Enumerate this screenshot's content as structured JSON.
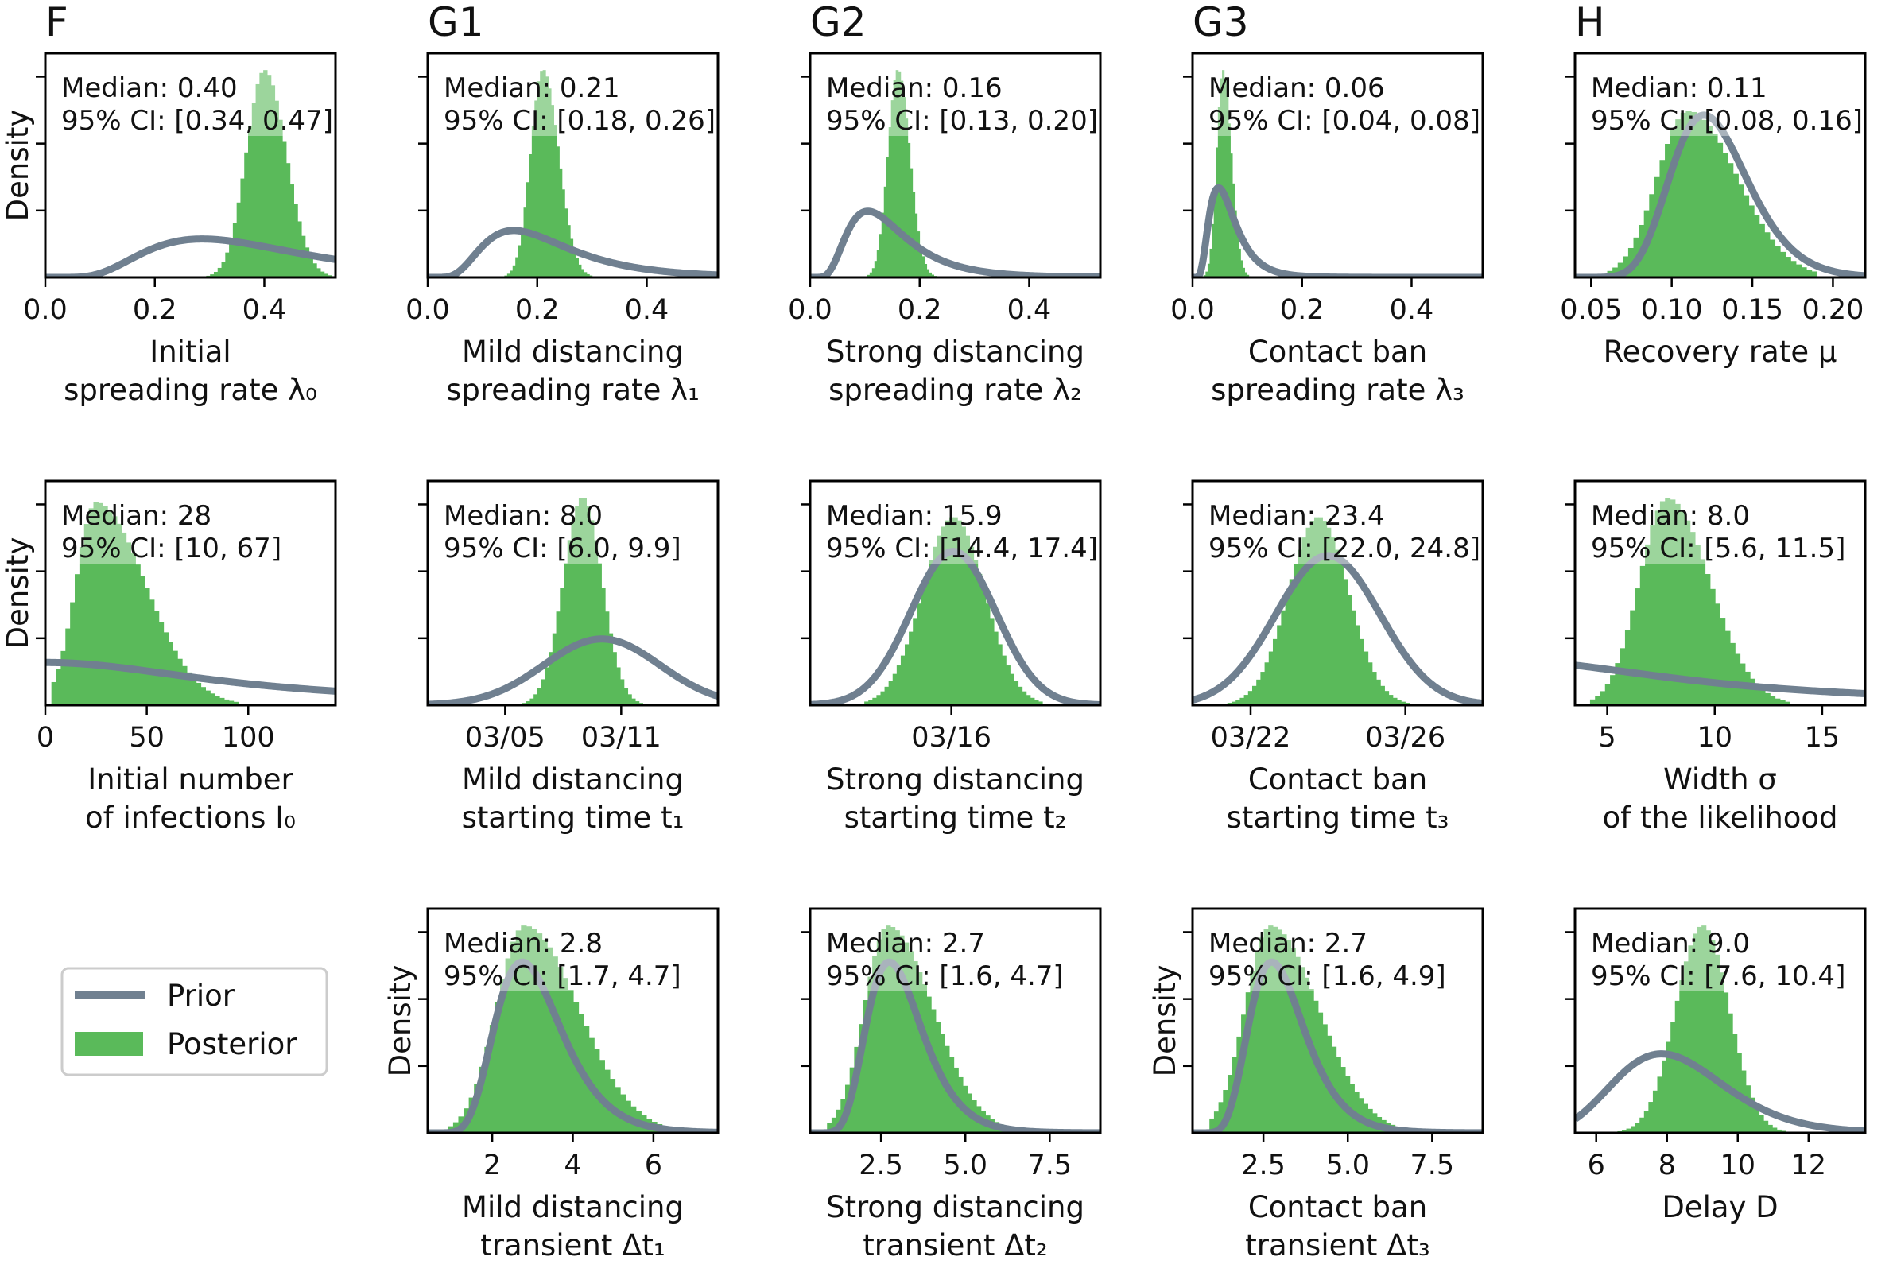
{
  "colors": {
    "prior": "#708090",
    "posterior": "#5aba5a",
    "frame": "#000000"
  },
  "y_axis_label": "Density",
  "legend": {
    "prior": "Prior",
    "posterior": "Posterior"
  },
  "chart_data": [
    {
      "id": "lambda0",
      "panel": "F",
      "type": "histogram",
      "show_ylabel": true,
      "xlabel": [
        "Initial",
        "spreading rate λ₀"
      ],
      "xlim": [
        0,
        0.53
      ],
      "xticks": [
        0,
        0.2,
        0.4
      ],
      "xtick_labels": [
        "0.0",
        "0.2",
        "0.4"
      ],
      "ymax": 1.05,
      "ytick_count": 3,
      "stats": {
        "median": "Median: 0.40",
        "ci": "95% CI: [0.34, 0.47]"
      },
      "prior": {
        "kind": "lognormal",
        "mu": -1.0,
        "sigma": 0.5,
        "peak": 0.18
      },
      "posterior": {
        "center": 0.4,
        "spread": 0.033,
        "skew": 0.2,
        "peak": 0.97,
        "bins": 36,
        "range": [
          0.28,
          0.53
        ]
      }
    },
    {
      "id": "lambda1",
      "panel": "G1",
      "type": "histogram",
      "show_ylabel": false,
      "xlabel": [
        "Mild distancing",
        "spreading rate λ₁"
      ],
      "xlim": [
        0,
        0.53
      ],
      "xticks": [
        0,
        0.2,
        0.4
      ],
      "xtick_labels": [
        "0.0",
        "0.2",
        "0.4"
      ],
      "ymax": 1.05,
      "ytick_count": 3,
      "stats": {
        "median": "Median: 0.21",
        "ci": "95% CI: [0.18, 0.26]"
      },
      "prior": {
        "kind": "lognormal",
        "mu": -1.6,
        "sigma": 0.5,
        "peak": 0.22
      },
      "posterior": {
        "center": 0.21,
        "spread": 0.022,
        "skew": 0.3,
        "peak": 0.97,
        "bins": 32,
        "range": [
          0.14,
          0.3
        ]
      }
    },
    {
      "id": "lambda2",
      "panel": "G2",
      "type": "histogram",
      "show_ylabel": false,
      "xlabel": [
        "Strong distancing",
        "spreading rate λ₂"
      ],
      "xlim": [
        0,
        0.53
      ],
      "xticks": [
        0,
        0.2,
        0.4
      ],
      "xtick_labels": [
        "0.0",
        "0.2",
        "0.4"
      ],
      "ymax": 1.05,
      "ytick_count": 3,
      "stats": {
        "median": "Median: 0.16",
        "ci": "95% CI: [0.13, 0.20]"
      },
      "prior": {
        "kind": "lognormal",
        "mu": -2.0,
        "sigma": 0.5,
        "peak": 0.31
      },
      "posterior": {
        "center": 0.16,
        "spread": 0.018,
        "skew": 0.2,
        "peak": 0.97,
        "bins": 30,
        "range": [
          0.1,
          0.23
        ]
      }
    },
    {
      "id": "lambda3",
      "panel": "G3",
      "type": "histogram",
      "show_ylabel": false,
      "xlabel": [
        "Contact ban",
        "spreading rate λ₃"
      ],
      "xlim": [
        0,
        0.53
      ],
      "xticks": [
        0,
        0.2,
        0.4
      ],
      "xtick_labels": [
        "0.0",
        "0.2",
        "0.4"
      ],
      "ymax": 1.05,
      "ytick_count": 3,
      "stats": {
        "median": "Median: 0.06",
        "ci": "95% CI: [0.04, 0.08]"
      },
      "prior": {
        "kind": "lognormal",
        "mu": -2.8,
        "sigma": 0.5,
        "peak": 0.42
      },
      "posterior": {
        "center": 0.055,
        "spread": 0.011,
        "skew": 0.4,
        "peak": 0.97,
        "bins": 24,
        "range": [
          0.02,
          0.11
        ]
      }
    },
    {
      "id": "mu",
      "panel": "H",
      "type": "histogram",
      "show_ylabel": false,
      "xlabel": [
        "Recovery rate μ"
      ],
      "xlim": [
        0.04,
        0.22
      ],
      "xticks": [
        0.05,
        0.1,
        0.15,
        0.2
      ],
      "xtick_labels": [
        "0.05",
        "0.10",
        "0.15",
        "0.20"
      ],
      "ymax": 1.05,
      "ytick_count": 3,
      "stats": {
        "median": "Median: 0.11",
        "ci": "95% CI: [0.08, 0.16]"
      },
      "prior": {
        "kind": "lognormal",
        "mu": -2.08,
        "sigma": 0.2,
        "peak": 0.76
      },
      "posterior": {
        "center": 0.11,
        "spread": 0.019,
        "skew": 0.6,
        "peak": 0.78,
        "bins": 40,
        "range": [
          0.06,
          0.19
        ]
      }
    },
    {
      "id": "I0",
      "panel": "",
      "type": "histogram",
      "show_ylabel": true,
      "xlabel": [
        "Initial number",
        "of infections I₀"
      ],
      "xlim": [
        0,
        143
      ],
      "xticks": [
        0,
        50,
        100
      ],
      "xtick_labels": [
        "0",
        "50",
        "100"
      ],
      "ymax": 1.05,
      "ytick_count": 3,
      "stats": {
        "median": "Median: 28",
        "ci": "95% CI: [10, 67]"
      },
      "prior": {
        "kind": "halfcauchy",
        "scale": 100,
        "peak": 0.2
      },
      "posterior": {
        "center": 25,
        "spread": 10,
        "skew": 1.4,
        "peak": 0.95,
        "bins": 40,
        "range": [
          3,
          95
        ]
      }
    },
    {
      "id": "t1",
      "panel": "",
      "type": "histogram",
      "show_ylabel": false,
      "xlabel": [
        "Mild distancing",
        "starting time t₁"
      ],
      "xlim": [
        0,
        15
      ],
      "xticks": [
        4,
        10
      ],
      "xtick_labels": [
        "03/05",
        "03/11"
      ],
      "ymax": 1.05,
      "ytick_count": 3,
      "stats": {
        "median": "Median: 8.0",
        "ci": "95% CI: [6.0, 9.9]"
      },
      "prior": {
        "kind": "normal",
        "mean": 9,
        "sd": 3,
        "peak": 0.31
      },
      "posterior": {
        "center": 8.0,
        "spread": 1.0,
        "skew": 0.0,
        "peak": 0.97,
        "bins": 36,
        "range": [
          4.5,
          11.5
        ]
      }
    },
    {
      "id": "t2",
      "panel": "",
      "type": "histogram",
      "show_ylabel": false,
      "xlabel": [
        "Strong distancing",
        "starting time t₂"
      ],
      "xlim": [
        0,
        15
      ],
      "xticks": [
        7.3
      ],
      "xtick_labels": [
        "03/16"
      ],
      "ymax": 1.05,
      "ytick_count": 3,
      "stats": {
        "median": "Median: 15.9",
        "ci": "95% CI: [14.4, 17.4]"
      },
      "prior": {
        "kind": "normal",
        "mean": 7.4,
        "sd": 2.2,
        "peak": 0.72
      },
      "posterior": {
        "center": 7.4,
        "spread": 1.6,
        "skew": 0.0,
        "peak": 0.88,
        "bins": 44,
        "range": [
          2.8,
          12.0
        ]
      }
    },
    {
      "id": "t3",
      "panel": "",
      "type": "histogram",
      "show_ylabel": false,
      "xlabel": [
        "Contact ban",
        "starting time t₃"
      ],
      "xlim": [
        0,
        15
      ],
      "xticks": [
        3,
        11
      ],
      "xtick_labels": [
        "03/22",
        "03/26"
      ],
      "ymax": 1.05,
      "ytick_count": 3,
      "stats": {
        "median": "Median: 23.4",
        "ci": "95% CI: [22.0, 24.8]"
      },
      "prior": {
        "kind": "normal",
        "mean": 7.0,
        "sd": 2.7,
        "peak": 0.7
      },
      "posterior": {
        "center": 6.5,
        "spread": 1.55,
        "skew": 0.0,
        "peak": 0.88,
        "bins": 44,
        "range": [
          1.8,
          11.2
        ]
      }
    },
    {
      "id": "sigma",
      "panel": "",
      "type": "histogram",
      "show_ylabel": false,
      "xlabel": [
        "Width σ",
        "of the likelihood"
      ],
      "xlim": [
        3.5,
        17
      ],
      "xticks": [
        5,
        10,
        15
      ],
      "xtick_labels": [
        "5",
        "10",
        "15"
      ],
      "ymax": 1.05,
      "ytick_count": 3,
      "stats": {
        "median": "Median: 8.0",
        "ci": "95% CI: [5.6, 11.5]"
      },
      "prior": {
        "kind": "halfcauchy",
        "scale": 10,
        "peak": 0.21
      },
      "posterior": {
        "center": 7.8,
        "spread": 1.3,
        "skew": 0.5,
        "peak": 0.97,
        "bins": 40,
        "range": [
          4.2,
          13.5
        ]
      }
    },
    {
      "id": "dt1",
      "panel": "",
      "type": "histogram",
      "show_ylabel": true,
      "xlabel": [
        "Mild distancing",
        "transient Δt₁"
      ],
      "xlim": [
        0.4,
        7.6
      ],
      "xticks": [
        2,
        4,
        6
      ],
      "xtick_labels": [
        "2",
        "4",
        "6"
      ],
      "ymax": 1.05,
      "ytick_count": 3,
      "stats": {
        "median": "Median: 2.8",
        "ci": "95% CI: [1.7, 4.7]"
      },
      "prior": {
        "kind": "lognormal",
        "mu": 1.1,
        "sigma": 0.3,
        "peak": 0.8
      },
      "posterior": {
        "center": 2.8,
        "spread": 0.7,
        "skew": 0.9,
        "peak": 0.97,
        "bins": 44,
        "range": [
          0.9,
          6.6
        ]
      }
    },
    {
      "id": "dt2",
      "panel": "",
      "type": "histogram",
      "show_ylabel": false,
      "xlabel": [
        "Strong distancing",
        "transient Δt₂"
      ],
      "xlim": [
        0.4,
        9.0
      ],
      "xticks": [
        2.5,
        5,
        7.5
      ],
      "xtick_labels": [
        "2.5",
        "5.0",
        "7.5"
      ],
      "ymax": 1.05,
      "ytick_count": 3,
      "stats": {
        "median": "Median: 2.7",
        "ci": "95% CI: [1.6, 4.7]"
      },
      "prior": {
        "kind": "lognormal",
        "mu": 1.1,
        "sigma": 0.3,
        "peak": 0.8
      },
      "posterior": {
        "center": 2.7,
        "spread": 0.7,
        "skew": 0.9,
        "peak": 0.97,
        "bins": 44,
        "range": [
          0.9,
          6.8
        ]
      }
    },
    {
      "id": "dt3",
      "panel": "",
      "type": "histogram",
      "show_ylabel": true,
      "xlabel": [
        "Contact ban",
        "transient Δt₃"
      ],
      "xlim": [
        0.4,
        9.0
      ],
      "xticks": [
        2.5,
        5,
        7.5
      ],
      "xtick_labels": [
        "2.5",
        "5.0",
        "7.5"
      ],
      "ymax": 1.05,
      "ytick_count": 3,
      "stats": {
        "median": "Median: 2.7",
        "ci": "95% CI: [1.6, 4.9]"
      },
      "prior": {
        "kind": "lognormal",
        "mu": 1.1,
        "sigma": 0.3,
        "peak": 0.8
      },
      "posterior": {
        "center": 2.7,
        "spread": 0.75,
        "skew": 0.9,
        "peak": 0.97,
        "bins": 44,
        "range": [
          0.9,
          6.8
        ]
      }
    },
    {
      "id": "D",
      "panel": "",
      "type": "histogram",
      "show_ylabel": false,
      "xlabel": [
        "Delay D"
      ],
      "xlim": [
        5.4,
        13.6
      ],
      "xticks": [
        6,
        8,
        10,
        12
      ],
      "xtick_labels": [
        "6",
        "8",
        "10",
        "12"
      ],
      "ymax": 1.05,
      "ytick_count": 3,
      "stats": {
        "median": "Median: 9.0",
        "ci": "95% CI: [7.6, 10.4]"
      },
      "prior": {
        "kind": "lognormal",
        "mu": 2.1,
        "sigma": 0.2,
        "peak": 0.37
      },
      "posterior": {
        "center": 9.0,
        "spread": 0.75,
        "skew": 0.0,
        "peak": 0.97,
        "bins": 40,
        "range": [
          6.6,
          11.6
        ]
      }
    }
  ]
}
